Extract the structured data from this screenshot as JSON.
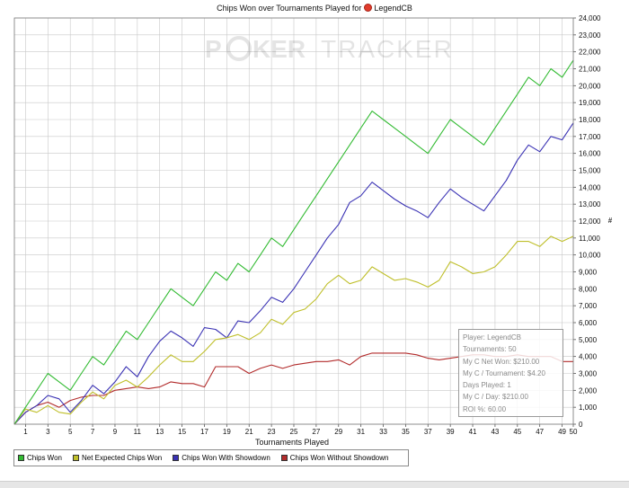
{
  "title": {
    "text_before": "Chips Won over Tournaments Played for",
    "player": "LegendCB",
    "suit_icon": "poker-chip-icon"
  },
  "watermark": {
    "left": "P",
    "chip": "O",
    "middle": "KER",
    "right": "TRACKER"
  },
  "info_box": {
    "lines": [
      "Player: LegendCB",
      "Tournaments: 50",
      "My C Net Won: $210.00",
      "My C / Tournament: $4.20",
      "Days Played: 1",
      "My C / Day: $210.00",
      "ROI %: 60.00"
    ]
  },
  "colors": {
    "chips_won": "#33bb33",
    "net_expected": "#bfbf2a",
    "with_showdown": "#3a32b4",
    "without_showdown": "#b22b2b",
    "grid": "#c8c8c8"
  },
  "chart_data": {
    "type": "line",
    "title": "Chips Won over Tournaments Played for LegendCB",
    "xlabel": "Tournaments Played",
    "ylabel": "#",
    "xlim": [
      0,
      50
    ],
    "ylim": [
      0,
      24000
    ],
    "x_ticks": [
      1,
      3,
      5,
      7,
      9,
      11,
      13,
      15,
      17,
      19,
      21,
      23,
      25,
      27,
      29,
      31,
      33,
      35,
      37,
      39,
      41,
      43,
      45,
      47,
      49,
      50
    ],
    "y_ticks": [
      0,
      1000,
      2000,
      3000,
      4000,
      5000,
      6000,
      7000,
      8000,
      9000,
      10000,
      11000,
      12000,
      13000,
      14000,
      15000,
      16000,
      17000,
      18000,
      19000,
      20000,
      21000,
      22000,
      23000,
      24000
    ],
    "y_tick_labels": [
      "0",
      "1,000",
      "2,000",
      "3,000",
      "4,000",
      "5,000",
      "6,000",
      "7,000",
      "8,000",
      "9,000",
      "10,000",
      "11,000",
      "12,000",
      "13,000",
      "14,000",
      "15,000",
      "16,000",
      "17,000",
      "18,000",
      "19,000",
      "20,000",
      "21,000",
      "22,000",
      "23,000",
      "24,000"
    ],
    "grid": true,
    "legend_position": "bottom-left",
    "x": [
      0,
      1,
      2,
      3,
      4,
      5,
      6,
      7,
      8,
      9,
      10,
      11,
      12,
      13,
      14,
      15,
      16,
      17,
      18,
      19,
      20,
      21,
      22,
      23,
      24,
      25,
      26,
      27,
      28,
      29,
      30,
      31,
      32,
      33,
      34,
      35,
      36,
      37,
      38,
      39,
      40,
      41,
      42,
      43,
      44,
      45,
      46,
      47,
      48,
      49,
      50
    ],
    "series": [
      {
        "name": "Chips Won",
        "color": "#33bb33",
        "values": [
          0,
          1000,
          2000,
          3000,
          2500,
          2000,
          3000,
          4000,
          3500,
          4500,
          5500,
          5000,
          6000,
          7000,
          8000,
          7500,
          7000,
          8000,
          9000,
          8500,
          9500,
          9000,
          10000,
          11000,
          10500,
          11500,
          12500,
          13500,
          14500,
          15500,
          16500,
          17500,
          18500,
          18000,
          17500,
          17000,
          16500,
          16000,
          17000,
          18000,
          17500,
          17000,
          16500,
          17500,
          18500,
          19500,
          20500,
          20000,
          21000,
          20500,
          21500
        ]
      },
      {
        "name": "Net Expected Chips Won",
        "color": "#bfbf2a",
        "values": [
          0,
          900,
          700,
          1100,
          700,
          600,
          1300,
          1900,
          1500,
          2300,
          2600,
          2200,
          2800,
          3500,
          4100,
          3700,
          3700,
          4300,
          5000,
          5100,
          5300,
          5000,
          5400,
          6200,
          5900,
          6600,
          6800,
          7400,
          8300,
          8800,
          8300,
          8500,
          9300,
          8900,
          8500,
          8600,
          8400,
          8100,
          8500,
          9600,
          9300,
          8900,
          9000,
          9300,
          10000,
          10800,
          10800,
          10500,
          11100,
          10800,
          11100
        ]
      },
      {
        "name": "Chips Won With Showdown",
        "color": "#3a32b4",
        "values": [
          0,
          700,
          1100,
          1700,
          1500,
          700,
          1400,
          2300,
          1800,
          2500,
          3400,
          2800,
          4000,
          4900,
          5500,
          5100,
          4600,
          5700,
          5600,
          5100,
          6100,
          6000,
          6700,
          7500,
          7200,
          8000,
          9000,
          10000,
          11000,
          11800,
          13100,
          13500,
          14300,
          13800,
          13300,
          12900,
          12600,
          12200,
          13100,
          13900,
          13400,
          13000,
          12600,
          13500,
          14400,
          15600,
          16500,
          16100,
          17000,
          16800,
          17800
        ]
      },
      {
        "name": "Chips Won Without Showdown",
        "color": "#b22b2b",
        "values": [
          0,
          700,
          1100,
          1300,
          1000,
          1400,
          1600,
          1700,
          1700,
          2000,
          2100,
          2200,
          2100,
          2200,
          2500,
          2400,
          2400,
          2200,
          3400,
          3400,
          3400,
          3000,
          3300,
          3500,
          3300,
          3500,
          3600,
          3700,
          3700,
          3800,
          3500,
          4000,
          4200,
          4200,
          4200,
          4200,
          4100,
          3900,
          3800,
          3900,
          4000,
          4100,
          4100,
          4000,
          4000,
          4100,
          4000,
          4000,
          4000,
          3700,
          3700
        ]
      }
    ]
  }
}
